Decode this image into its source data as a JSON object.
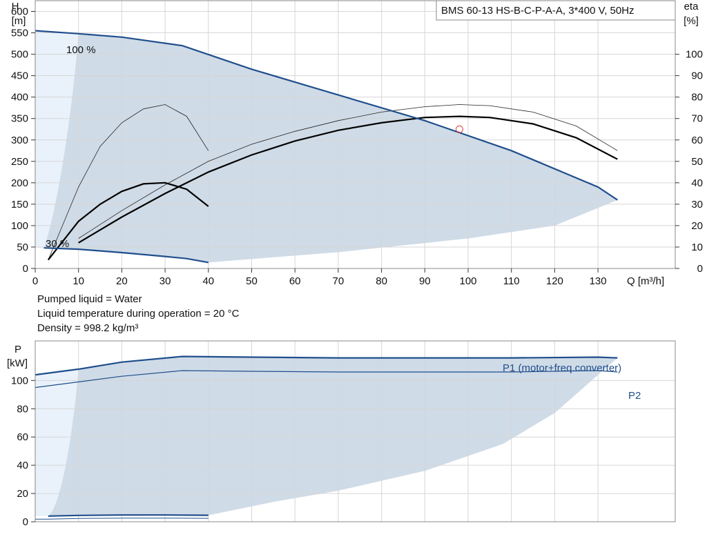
{
  "chart_data": [
    {
      "type": "line",
      "title": "BMS 60-13 HS-B-C-P-A-A, 3*400 V, 50Hz",
      "xlabel": "Q [m³/h]",
      "ylabel_line1": "H",
      "ylabel_line2": "[m]",
      "y2label_line1": "eta",
      "y2label_line2": "[%]",
      "xlim": [
        0,
        148
      ],
      "ylim": [
        0,
        625
      ],
      "y2lim": [
        0,
        125
      ],
      "xticks": [
        0,
        10,
        20,
        30,
        40,
        50,
        60,
        70,
        80,
        90,
        100,
        110,
        120,
        130
      ],
      "yticks": [
        0,
        50,
        100,
        150,
        200,
        250,
        300,
        350,
        400,
        450,
        500,
        550,
        600
      ],
      "y2ticks": [
        0,
        10,
        20,
        30,
        40,
        50,
        60,
        70,
        80,
        90,
        100
      ],
      "grid": true,
      "labels": {
        "speed_max": "100 %",
        "speed_min": "30 %"
      },
      "series": [
        {
          "role": "head-100",
          "x": [
            0,
            10,
            20,
            34,
            50,
            70,
            90,
            110,
            130,
            134.5
          ],
          "y": [
            555,
            548,
            540,
            520,
            465,
            405,
            345,
            275,
            190,
            160
          ]
        },
        {
          "role": "head-30",
          "x": [
            2,
            10,
            20,
            30,
            35,
            40
          ],
          "y": [
            48,
            45,
            37,
            28,
            23,
            14
          ]
        },
        {
          "role": "eta-100",
          "x": [
            10,
            20,
            30,
            40,
            50,
            60,
            70,
            80,
            90,
            98,
            105,
            115,
            125,
            134.5
          ],
          "y": [
            12,
            24,
            35,
            45,
            53,
            59.5,
            64.5,
            68,
            70.5,
            71,
            70.5,
            67.5,
            61,
            51
          ]
        },
        {
          "role": "eta-30",
          "x": [
            3,
            10,
            15,
            20,
            25,
            30,
            35,
            40
          ],
          "y": [
            4,
            22,
            30,
            36,
            39.5,
            40,
            37,
            29
          ]
        },
        {
          "role": "eta-100-thin",
          "x": [
            10,
            20,
            30,
            40,
            50,
            60,
            70,
            80,
            90,
            98,
            105,
            115,
            125,
            134.5
          ],
          "y": [
            14,
            27,
            39,
            50,
            58,
            64,
            69,
            73,
            75.5,
            76.5,
            76,
            73,
            66.5,
            55
          ]
        },
        {
          "role": "eta-30-thin",
          "x": [
            3,
            10,
            15,
            20,
            25,
            30,
            35,
            40
          ],
          "y": [
            4,
            38,
            57,
            68,
            74.5,
            76.5,
            71,
            55
          ]
        }
      ],
      "marker": {
        "x": 98,
        "y": 325
      }
    },
    {
      "type": "line",
      "ylabel_line1": "P",
      "ylabel_line2": "[kW]",
      "xlim": [
        0,
        148
      ],
      "ylim": [
        0,
        128
      ],
      "yticks": [
        0,
        20,
        40,
        60,
        80,
        100
      ],
      "grid": true,
      "series": [
        {
          "name": "P1 (motor+freq.converter)",
          "x": [
            0,
            10,
            20,
            34,
            50,
            70,
            90,
            110,
            130,
            134.5
          ],
          "y": [
            104,
            108,
            113,
            117,
            116.5,
            116,
            116,
            116,
            116.5,
            116
          ]
        },
        {
          "name": "P2",
          "x": [
            0,
            10,
            20,
            34,
            50,
            70,
            90,
            110,
            130,
            134.5
          ],
          "y": [
            95,
            99,
            103,
            107,
            106.5,
            106,
            106,
            106,
            107,
            106
          ]
        },
        {
          "role": "p-30",
          "x": [
            0,
            3,
            10,
            20,
            30,
            40
          ],
          "y": [
            4,
            4,
            4.5,
            4.8,
            4.8,
            4.6
          ]
        }
      ]
    }
  ],
  "info": {
    "line1": "Pumped liquid = Water",
    "line2": "Liquid temperature during operation = 20 °C",
    "line3": "Density = 998.2 kg/m³"
  },
  "colors": {
    "curve_blue": "#1f4e8c",
    "fill": "#cfdbe7",
    "fill_light": "#e9f2fb",
    "grid": "#d6d6d6",
    "marker": "#e03c3c"
  }
}
